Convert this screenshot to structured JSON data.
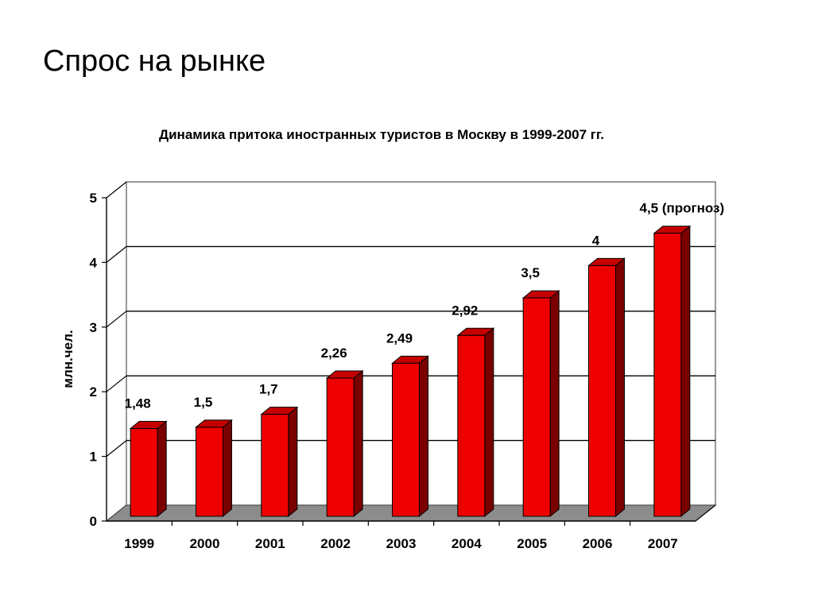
{
  "slide": {
    "title": "Спрос на рынке"
  },
  "chart_data": {
    "type": "bar",
    "title": "Динамика притока иностранных туристов в Москву в 1999-2007 гг.",
    "xlabel": "",
    "ylabel": "млн.чел.",
    "categories": [
      "1999",
      "2000",
      "2001",
      "2002",
      "2003",
      "2004",
      "2005",
      "2006",
      "2007"
    ],
    "values": [
      1.48,
      1.5,
      1.7,
      2.26,
      2.49,
      2.92,
      3.5,
      4,
      4.5
    ],
    "data_labels": [
      "1,48",
      "1,5",
      "1,7",
      "2,26",
      "2,49",
      "2,92",
      "3,5",
      "4",
      "4,5 (прогноз)"
    ],
    "y_ticks": [
      "0",
      "1",
      "2",
      "3",
      "4",
      "5"
    ],
    "ylim": [
      0,
      5
    ],
    "grid": true,
    "style": "3d",
    "colors": {
      "bar_front": "#ee0000",
      "bar_side": "#7a0000",
      "bar_top": "#c40000",
      "floor": "#8c8c8c",
      "axis": "#000000"
    }
  }
}
